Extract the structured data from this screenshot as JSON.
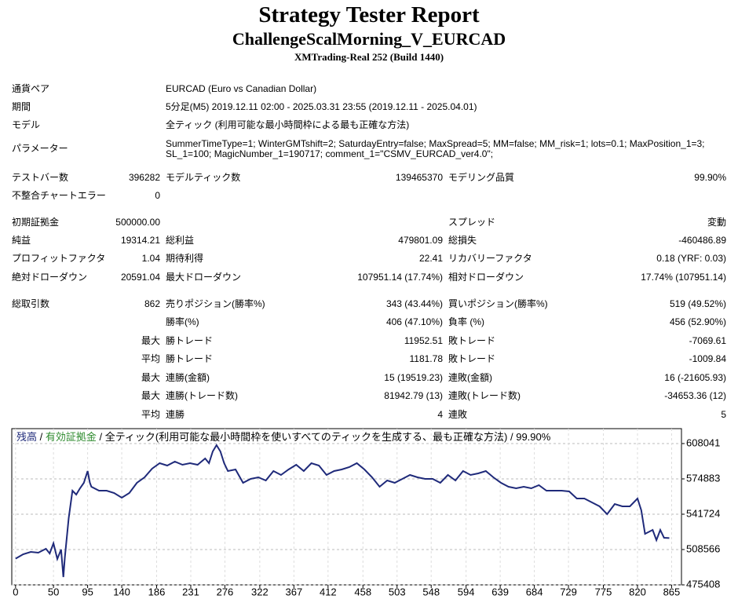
{
  "header": {
    "title": "Strategy Tester Report",
    "subtitle": "ChallengeScalMorning_V_EURCAD",
    "build": "XMTrading-Real 252 (Build 1440)"
  },
  "table": {
    "rows": [
      [
        "通貨ペア",
        "EURCAD (Euro vs Canadian Dollar)"
      ],
      [
        "期間",
        "5分足(M5) 2019.12.11 02:00 - 2025.03.31 23:55 (2019.12.11 - 2025.04.01)"
      ],
      [
        "モデル",
        "全ティック (利用可能な最小時間枠による最も正確な方法)"
      ],
      [
        "パラメーター",
        [
          "SummerTimeType=1; WinterGMTshift=2; SaturdayEntry=false; MaxSpread=5; MM=false; MM_risk=1; lots=0.1; MaxPosition_1=3;",
          "SL_1=100; MagicNumber_1=190717; comment_1=\"CSMV_EURCAD_ver4.0\";"
        ]
      ],
      [
        "テストバー数",
        "396282",
        "モデルティック数",
        "139465370",
        "モデリング品質",
        "99.90%"
      ],
      [
        "不整合チャートエラー",
        "0"
      ],
      [
        "初期証拠金",
        "500000.00",
        "スプレッド",
        "変動"
      ],
      [
        "純益",
        "19314.21",
        "総利益",
        "479801.09",
        "総損失",
        "-460486.89"
      ],
      [
        "プロフィットファクタ",
        "1.04",
        "期待利得",
        "22.41",
        "リカバリーファクタ",
        "0.18 (YRF: 0.03)"
      ],
      [
        "絶対ドローダウン",
        "20591.04",
        "最大ドローダウン",
        "107951.14 (17.74%)",
        "相対ドローダウン",
        "17.74% (107951.14)"
      ],
      [
        "総取引数",
        "862",
        "売りポジション(勝率%)",
        "343 (43.44%)",
        "買いポジション(勝率%)",
        "519 (49.52%)"
      ],
      [
        "勝率(%)",
        "406 (47.10%)",
        "負率 (%)",
        "456 (52.90%)"
      ],
      [
        "最大",
        "勝トレード",
        "11952.51",
        "敗トレード",
        "-7069.61"
      ],
      [
        "平均",
        "勝トレード",
        "1181.78",
        "敗トレード",
        "-1009.84"
      ],
      [
        "最大",
        "連勝(金額)",
        "15 (19519.23)",
        "連敗(金額)",
        "16 (-21605.93)"
      ],
      [
        "最大",
        "連勝(トレード数)",
        "81942.79 (13)",
        "連敗(トレード数)",
        "-34653.36 (12)"
      ],
      [
        "平均",
        "連勝",
        "4",
        "連敗",
        "5"
      ]
    ]
  },
  "chart_data": {
    "type": "line",
    "caption": [
      {
        "text": "残高",
        "color": "#1f2a7a"
      },
      {
        "text": " / ",
        "color": "#000000"
      },
      {
        "text": "有効証拠金",
        "color": "#2e8b2e"
      },
      {
        "text": " / 全ティック(利用可能な最小時間枠を使いすべてのティックを生成する、最も正確な方法) / 99.90%",
        "color": "#000000"
      }
    ],
    "color": "#1f2a7a",
    "x": [
      0,
      10,
      20,
      30,
      40,
      45,
      50,
      55,
      60,
      63,
      65,
      70,
      75,
      80,
      85,
      90,
      95,
      98,
      100,
      110,
      120,
      130,
      140,
      150,
      160,
      170,
      180,
      190,
      200,
      210,
      220,
      230,
      240,
      250,
      255,
      260,
      265,
      270,
      275,
      280,
      290,
      300,
      310,
      320,
      330,
      340,
      350,
      360,
      370,
      380,
      390,
      400,
      410,
      420,
      430,
      440,
      450,
      460,
      470,
      480,
      490,
      500,
      510,
      520,
      530,
      540,
      550,
      560,
      570,
      580,
      590,
      600,
      610,
      620,
      630,
      640,
      650,
      660,
      670,
      680,
      690,
      700,
      710,
      720,
      730,
      740,
      750,
      760,
      770,
      780,
      790,
      800,
      810,
      820,
      825,
      830,
      840,
      845,
      850,
      855,
      862
    ],
    "values": [
      500000,
      504145,
      506355,
      505618,
      509303,
      504882,
      514461,
      499724,
      508566,
      482776,
      501197,
      538039,
      563829,
      560145,
      566039,
      571197,
      582250,
      571197,
      567513,
      563829,
      563829,
      561618,
      557197,
      561618,
      571197,
      576355,
      584460,
      589618,
      587408,
      591092,
      588145,
      589618,
      588145,
      594039,
      589618,
      600671,
      606566,
      600671,
      589618,
      582250,
      583723,
      571197,
      574881,
      576355,
      573408,
      582250,
      578566,
      583723,
      588145,
      582250,
      589618,
      587408,
      578566,
      582250,
      583723,
      585934,
      589618,
      583723,
      576355,
      567513,
      573408,
      571197,
      574881,
      578566,
      576355,
      574881,
      574881,
      571197,
      578566,
      573408,
      582250,
      578566,
      580039,
      582250,
      576355,
      571197,
      567513,
      566039,
      567513,
      566039,
      568987,
      563829,
      563829,
      563829,
      563092,
      556460,
      556460,
      552776,
      549092,
      541724,
      551303,
      549092,
      549092,
      556460,
      545408,
      523303,
      526987,
      517408,
      526987,
      519618,
      519314
    ],
    "xlim": [
      -5,
      878
    ],
    "ylim": [
      475408,
      622040
    ],
    "xticks": [
      0,
      50,
      95,
      140,
      186,
      231,
      276,
      322,
      367,
      412,
      458,
      503,
      548,
      594,
      639,
      684,
      729,
      775,
      820,
      865
    ],
    "yticks": [
      475408,
      508566,
      541724,
      574883,
      608041
    ],
    "grid": true
  }
}
